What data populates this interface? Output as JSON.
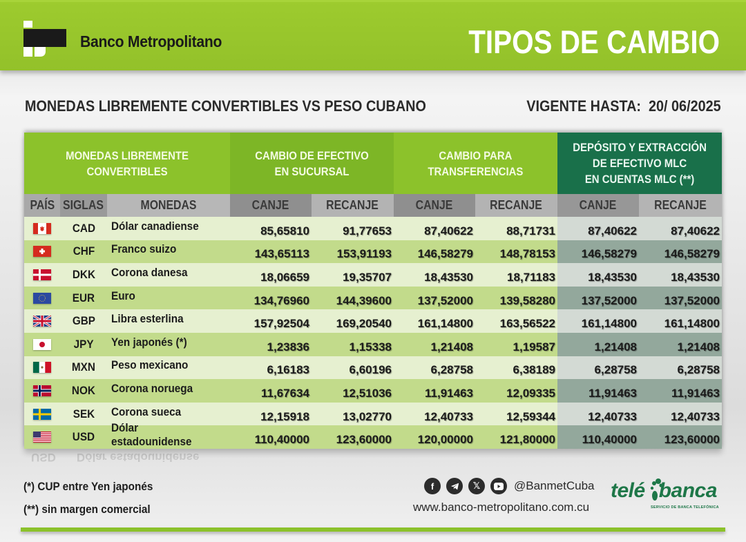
{
  "header": {
    "bank_name": "Banco Metropolitano",
    "title": "TIPOS DE CAMBIO",
    "brand_color": "#93c12a"
  },
  "subheader": {
    "subtitle": "MONEDAS LIBREMENTE CONVERTIBLES VS PESO CUBANO",
    "valid_until_label": "VIGENTE HASTA:",
    "valid_until_date": "20/ 06/2025"
  },
  "table": {
    "groups": [
      {
        "label": "MONEDAS LIBREMENTE\nCONVERTIBLES"
      },
      {
        "label": "CAMBIO DE EFECTIVO\nEN SUCURSAL"
      },
      {
        "label": "CAMBIO PARA\nTRANSFERENCIAS"
      },
      {
        "label": "DEPÓSITO Y EXTRACCIÓN\nDE EFECTIVO MLC\nEN CUENTAS MLC (**)"
      }
    ],
    "columns": [
      "PAÍS",
      "SIGLAS",
      "MONEDAS",
      "CANJE",
      "RECANJE",
      "CANJE",
      "RECANJE",
      "CANJE",
      "RECANJE"
    ],
    "rows": [
      {
        "flag": "canada-flag",
        "code": "CAD",
        "name": "Dólar canadiense",
        "vals": [
          "85,65810",
          "91,77653",
          "87,40622",
          "88,71731",
          "87,40622",
          "87,40622"
        ]
      },
      {
        "flag": "switzerland-flag",
        "code": "CHF",
        "name": "Franco suizo",
        "vals": [
          "143,65113",
          "153,91193",
          "146,58279",
          "148,78153",
          "146,58279",
          "146,58279"
        ]
      },
      {
        "flag": "denmark-flag",
        "code": "DKK",
        "name": "Corona danesa",
        "vals": [
          "18,06659",
          "19,35707",
          "18,43530",
          "18,71183",
          "18,43530",
          "18,43530"
        ]
      },
      {
        "flag": "eu-flag",
        "code": "EUR",
        "name": "Euro",
        "vals": [
          "134,76960",
          "144,39600",
          "137,52000",
          "139,58280",
          "137,52000",
          "137,52000"
        ]
      },
      {
        "flag": "uk-flag",
        "code": "GBP",
        "name": "Libra esterlina",
        "vals": [
          "157,92504",
          "169,20540",
          "161,14800",
          "163,56522",
          "161,14800",
          "161,14800"
        ]
      },
      {
        "flag": "japan-flag",
        "code": "JPY",
        "name": "Yen japonés (*)",
        "vals": [
          "1,23836",
          "1,15338",
          "1,21408",
          "1,19587",
          "1,21408",
          "1,21408"
        ]
      },
      {
        "flag": "mexico-flag",
        "code": "MXN",
        "name": "Peso mexicano",
        "vals": [
          "6,16183",
          "6,60196",
          "6,28758",
          "6,38189",
          "6,28758",
          "6,28758"
        ]
      },
      {
        "flag": "norway-flag",
        "code": "NOK",
        "name": "Corona noruega",
        "vals": [
          "11,67634",
          "12,51036",
          "11,91463",
          "12,09335",
          "11,91463",
          "11,91463"
        ]
      },
      {
        "flag": "sweden-flag",
        "code": "SEK",
        "name": "Corona sueca",
        "vals": [
          "12,15918",
          "13,02770",
          "12,40733",
          "12,59344",
          "12,40733",
          "12,40733"
        ]
      },
      {
        "flag": "usa-flag",
        "code": "USD",
        "name": "Dólar estadounidense",
        "vals": [
          "110,40000",
          "123,60000",
          "120,00000",
          "121,80000",
          "110,40000",
          "123,60000"
        ]
      }
    ]
  },
  "notes": {
    "note1": "(*) CUP entre Yen japonés",
    "note2": "(**) sin margen comercial"
  },
  "footer": {
    "social_icons": [
      "facebook-icon",
      "telegram-icon",
      "x-icon",
      "youtube-icon"
    ],
    "social_handle": "@BanmetCuba",
    "website": "www.banco-metropolitano.com.cu",
    "telebanca_left": "telé",
    "telebanca_right": "banca",
    "telebanca_tagline": "SERVICIO DE BANCA TELEFÓNICA",
    "telebanca_color": "#1e7748"
  }
}
